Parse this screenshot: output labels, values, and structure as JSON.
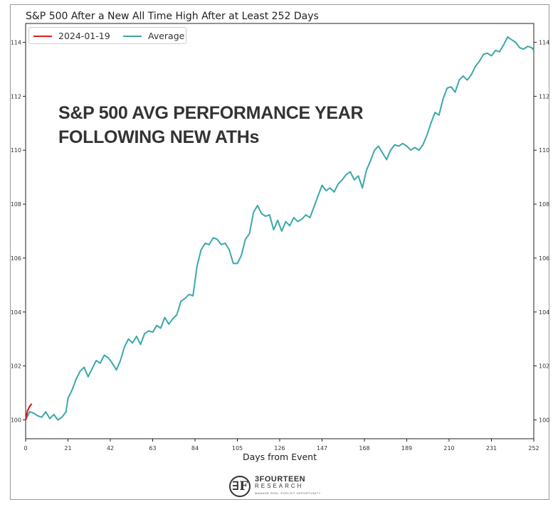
{
  "chart_data": {
    "type": "line",
    "title": "S&P 500 After a New All Time High After at Least 252 Days",
    "annotation": [
      "S&P 500 AVG PERFORMANCE YEAR",
      "FOLLOWING NEW ATHs"
    ],
    "xlabel": "Days from Event",
    "ylabel": "",
    "xlim": [
      0,
      252
    ],
    "ylim": [
      99.3,
      114.7
    ],
    "x_ticks": [
      0,
      21,
      42,
      63,
      84,
      105,
      126,
      147,
      168,
      189,
      210,
      231,
      252
    ],
    "y_ticks": [
      100,
      102,
      104,
      106,
      108,
      110,
      112,
      114
    ],
    "grid": false,
    "legend_position": "top-left",
    "series": [
      {
        "name": "2024-01-19",
        "color": "#e41a1c",
        "x": [
          0,
          1,
          2,
          3
        ],
        "y": [
          100.0,
          100.35,
          100.5,
          100.6
        ]
      },
      {
        "name": "Average",
        "color": "#3aa8a8",
        "x": [
          0,
          2,
          4,
          6,
          8,
          10,
          12,
          14,
          16,
          18,
          20,
          21,
          23,
          25,
          27,
          29,
          31,
          33,
          35,
          37,
          39,
          41,
          43,
          45,
          47,
          49,
          51,
          53,
          55,
          57,
          59,
          61,
          63,
          65,
          67,
          69,
          71,
          73,
          75,
          77,
          79,
          81,
          83,
          85,
          87,
          89,
          91,
          93,
          95,
          97,
          99,
          101,
          103,
          105,
          107,
          109,
          111,
          113,
          115,
          117,
          119,
          121,
          123,
          125,
          127,
          129,
          131,
          133,
          135,
          137,
          139,
          141,
          143,
          145,
          147,
          149,
          151,
          153,
          155,
          157,
          159,
          161,
          163,
          165,
          167,
          169,
          171,
          173,
          175,
          177,
          179,
          181,
          183,
          185,
          187,
          189,
          191,
          193,
          195,
          197,
          199,
          201,
          203,
          205,
          207,
          209,
          211,
          213,
          215,
          217,
          219,
          221,
          223,
          225,
          227,
          229,
          231,
          233,
          235,
          237,
          239,
          241,
          243,
          245,
          247,
          249,
          251,
          252
        ],
        "y": [
          100.0,
          100.3,
          100.25,
          100.15,
          100.1,
          100.3,
          100.05,
          100.2,
          100.0,
          100.1,
          100.3,
          100.8,
          101.1,
          101.5,
          101.8,
          101.95,
          101.6,
          101.9,
          102.2,
          102.1,
          102.4,
          102.3,
          102.1,
          101.85,
          102.2,
          102.7,
          103.0,
          102.85,
          103.1,
          102.8,
          103.2,
          103.3,
          103.25,
          103.5,
          103.4,
          103.8,
          103.55,
          103.75,
          103.9,
          104.4,
          104.5,
          104.65,
          104.6,
          105.7,
          106.3,
          106.55,
          106.5,
          106.75,
          106.7,
          106.5,
          106.55,
          106.3,
          105.8,
          105.8,
          106.1,
          106.7,
          106.9,
          107.7,
          107.95,
          107.65,
          107.55,
          107.6,
          107.05,
          107.4,
          107.0,
          107.35,
          107.2,
          107.5,
          107.35,
          107.45,
          107.6,
          107.5,
          107.9,
          108.3,
          108.7,
          108.5,
          108.6,
          108.45,
          108.75,
          108.9,
          109.1,
          109.2,
          108.9,
          109.05,
          108.6,
          109.25,
          109.6,
          110.0,
          110.15,
          109.9,
          109.65,
          110.0,
          110.2,
          110.15,
          110.25,
          110.15,
          110.0,
          110.1,
          110.0,
          110.2,
          110.55,
          111.0,
          111.4,
          111.3,
          111.9,
          112.3,
          112.35,
          112.15,
          112.6,
          112.75,
          112.6,
          112.8,
          113.1,
          113.3,
          113.55,
          113.6,
          113.5,
          113.7,
          113.65,
          113.9,
          114.2,
          114.1,
          114.0,
          113.8,
          113.75,
          113.85,
          113.8,
          113.7
        ]
      }
    ]
  },
  "logo": {
    "mark": "∃F",
    "name": "3FOURTEEN",
    "sub": "RESEARCH",
    "tagline": "MANAGE RISK. EXPLOIT OPPORTUNITY"
  }
}
